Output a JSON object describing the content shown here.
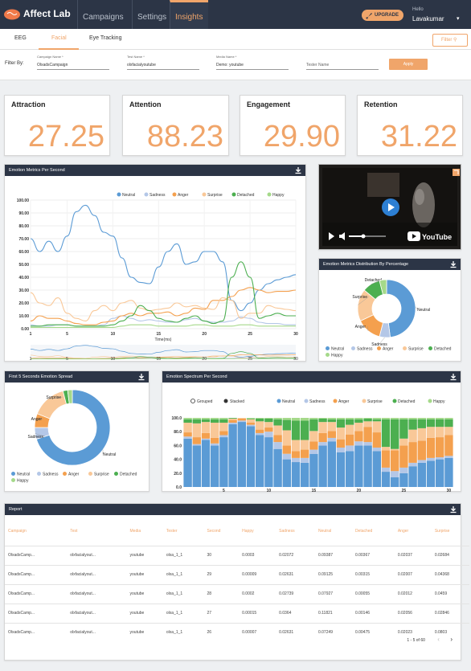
{
  "nav": {
    "brand": "Affect Lab",
    "tabs": [
      "Campaigns",
      "Settings",
      "Insights"
    ],
    "upgrade": "UPGRADE",
    "hello": "Hello",
    "user": "Lavakumar"
  },
  "subtabs": [
    "EEG",
    "Facial",
    "Eye Tracking"
  ],
  "filter_button": "Filter",
  "filterbar": {
    "label": "Filter By:",
    "fields": [
      {
        "label": "Campaign Name *",
        "value": "OlxadsCampaign"
      },
      {
        "label": "Test Name *",
        "value": "olxfacialyoutube"
      },
      {
        "label": "Media Name *",
        "value": "Demo: youtube"
      },
      {
        "label": "",
        "value": "Tester Name"
      }
    ],
    "apply": "Apply"
  },
  "stats": [
    {
      "title": "Attraction",
      "value": "27.25"
    },
    {
      "title": "Attention",
      "value": "88.23"
    },
    {
      "title": "Engagement",
      "value": "29.90"
    },
    {
      "title": "Retention",
      "value": "31.22"
    }
  ],
  "colors": {
    "neutral": "#5b9bd5",
    "sadness": "#b4c7e7",
    "anger": "#f4a04e",
    "surprise": "#f9c898",
    "detached": "#4caf50",
    "happy": "#a5d98a"
  },
  "panels": {
    "metrics": "Emotion Metrics Per Second",
    "distribution": "Emotion Metrics Distribution By Percentage",
    "first5": "First 5 Seconds Emotion Spread",
    "spectrum": "Emotion Spectrum Per Second",
    "report": "Report"
  },
  "legend_labels": [
    "Neutral",
    "Sadness",
    "Anger",
    "Surprise",
    "Detached",
    "Happy"
  ],
  "video": {
    "brand": "YouTube"
  },
  "spectrum_toggle": [
    "Grouped",
    "Stacked"
  ],
  "chart_data": [
    {
      "type": "line",
      "title": "Emotion Metrics Per Second",
      "xlabel": "Time(ms)",
      "ylim": [
        0,
        100
      ],
      "yticks": [
        "100.00",
        "90.00",
        "80.00",
        "70.00",
        "60.00",
        "50.00",
        "40.00",
        "30.00",
        "20.00",
        "10.00",
        "0.00"
      ],
      "xticks": [
        "1",
        "5",
        "10",
        "15",
        "20",
        "25",
        "30"
      ],
      "x": [
        1,
        2,
        3,
        4,
        5,
        6,
        7,
        8,
        9,
        10,
        11,
        12,
        13,
        14,
        15,
        16,
        17,
        18,
        19,
        20,
        21,
        22,
        23,
        24,
        25,
        26,
        27,
        28,
        29,
        30
      ],
      "series": [
        {
          "name": "Neutral",
          "values": [
            70,
            60,
            68,
            60,
            72,
            91,
            96,
            88,
            75,
            72,
            55,
            40,
            36,
            35,
            48,
            60,
            66,
            50,
            52,
            60,
            60,
            52,
            22,
            14,
            20,
            30,
            35,
            38,
            40,
            42
          ]
        },
        {
          "name": "Sadness",
          "values": [
            3,
            2,
            2,
            3,
            3,
            2,
            2,
            2,
            3,
            8,
            10,
            8,
            6,
            7,
            6,
            5,
            5,
            7,
            8,
            6,
            5,
            5,
            6,
            9,
            8,
            5,
            4,
            4,
            3,
            3
          ]
        },
        {
          "name": "Anger",
          "values": [
            6,
            10,
            8,
            8,
            6,
            4,
            3,
            3,
            5,
            6,
            10,
            12,
            10,
            12,
            12,
            13,
            10,
            12,
            16,
            15,
            22,
            22,
            25,
            30,
            32,
            30,
            28,
            29,
            29,
            30
          ]
        },
        {
          "name": "Surprise",
          "values": [
            28,
            20,
            18,
            24,
            12,
            8,
            6,
            14,
            18,
            14,
            20,
            22,
            16,
            14,
            15,
            16,
            20,
            17,
            18,
            16,
            15,
            24,
            22,
            8,
            12,
            12,
            18,
            16,
            15,
            14
          ]
        },
        {
          "name": "Detached",
          "values": [
            2,
            2,
            3,
            3,
            3,
            2,
            2,
            2,
            2,
            3,
            6,
            10,
            18,
            14,
            8,
            6,
            5,
            8,
            10,
            6,
            4,
            6,
            40,
            52,
            40,
            8,
            10,
            12,
            10,
            10
          ]
        },
        {
          "name": "Happy",
          "values": [
            1,
            1,
            1,
            1,
            1,
            1,
            1,
            1,
            1,
            1,
            2,
            3,
            3,
            3,
            2,
            2,
            2,
            2,
            3,
            3,
            2,
            2,
            2,
            3,
            3,
            2,
            2,
            2,
            2,
            2
          ]
        }
      ]
    },
    {
      "type": "pie",
      "title": "Emotion Metrics Distribution By Percentage",
      "labels": [
        "Neutral",
        "Sadness",
        "Anger",
        "Surprise",
        "Detached",
        "Happy"
      ],
      "values": [
        48,
        6,
        14,
        18,
        10,
        4
      ]
    },
    {
      "type": "pie",
      "title": "First 5 Seconds Emotion Spread",
      "labels": [
        "Neutral",
        "Sadness",
        "Anger",
        "Surprise",
        "Detached",
        "Happy"
      ],
      "values": [
        70,
        5,
        6,
        15,
        2,
        2
      ]
    },
    {
      "type": "bar",
      "title": "Emotion Spectrum Per Second",
      "stacked": true,
      "ylim": [
        0,
        100
      ],
      "yticks": [
        "100.0",
        "80.0",
        "60.0",
        "40.0",
        "20.0",
        "0.0"
      ],
      "xticks": [
        "5",
        "10",
        "15",
        "20",
        "25",
        "30"
      ],
      "categories": [
        "1",
        "2",
        "3",
        "4",
        "5",
        "6",
        "7",
        "8",
        "9",
        "10",
        "11",
        "12",
        "13",
        "14",
        "15",
        "16",
        "17",
        "18",
        "19",
        "20",
        "21",
        "22",
        "23",
        "24",
        "25",
        "26",
        "27",
        "28",
        "29",
        "30"
      ],
      "series": [
        {
          "name": "Neutral",
          "values": [
            70,
            60,
            68,
            60,
            72,
            91,
            96,
            88,
            75,
            72,
            55,
            40,
            36,
            35,
            48,
            60,
            66,
            50,
            52,
            60,
            60,
            52,
            22,
            14,
            20,
            30,
            35,
            38,
            40,
            42
          ]
        },
        {
          "name": "Sadness",
          "values": [
            3,
            2,
            2,
            3,
            3,
            2,
            2,
            2,
            3,
            8,
            10,
            8,
            6,
            7,
            6,
            5,
            5,
            7,
            8,
            6,
            5,
            5,
            6,
            9,
            8,
            5,
            4,
            4,
            3,
            3
          ]
        },
        {
          "name": "Anger",
          "values": [
            6,
            10,
            8,
            8,
            6,
            4,
            3,
            3,
            5,
            6,
            10,
            12,
            10,
            12,
            12,
            13,
            10,
            12,
            16,
            15,
            22,
            22,
            25,
            30,
            32,
            30,
            28,
            29,
            29,
            30
          ]
        },
        {
          "name": "Surprise",
          "values": [
            14,
            20,
            16,
            22,
            12,
            2,
            1,
            5,
            12,
            8,
            14,
            22,
            16,
            14,
            15,
            16,
            13,
            17,
            14,
            12,
            8,
            16,
            5,
            2,
            10,
            18,
            18,
            16,
            15,
            12
          ]
        },
        {
          "name": "Detached",
          "values": [
            5,
            6,
            4,
            5,
            5,
            1,
            0,
            1,
            4,
            5,
            9,
            15,
            28,
            28,
            17,
            5,
            4,
            12,
            8,
            5,
            4,
            3,
            40,
            43,
            28,
            15,
            13,
            11,
            11,
            11
          ]
        },
        {
          "name": "Happy",
          "values": [
            2,
            2,
            2,
            2,
            2,
            0,
            0,
            1,
            1,
            1,
            2,
            3,
            4,
            4,
            2,
            1,
            2,
            2,
            2,
            2,
            1,
            2,
            2,
            2,
            2,
            2,
            2,
            2,
            2,
            2
          ]
        }
      ]
    }
  ],
  "report": {
    "columns": [
      "Campaign",
      "Test",
      "Media",
      "Tester",
      "Second",
      "Happy",
      "Sadness",
      "Neutral",
      "Detached",
      "Anger",
      "Surprise"
    ],
    "rows": [
      [
        "OlxadsCamp...",
        "olxfacialyout...",
        "youtube",
        "olxa_1_1",
        "30",
        "0.0003",
        "0.02072",
        "0.09387",
        "0.00367",
        "0.02037",
        "0.02684"
      ],
      [
        "OlxadsCamp...",
        "olxfacialyout...",
        "youtube",
        "olxa_1_1",
        "29",
        "0.00009",
        "0.02631",
        "0.09125",
        "0.00315",
        "0.02007",
        "0.04368"
      ],
      [
        "OlxadsCamp...",
        "olxfacialyout...",
        "youtube",
        "olxa_1_1",
        "28",
        "0.0002",
        "0.02739",
        "0.07927",
        "0.00055",
        "0.02012",
        "0.0459"
      ],
      [
        "OlxadsCamp...",
        "olxfacialyout...",
        "youtube",
        "olxa_1_1",
        "27",
        "0.00015",
        "0.0364",
        "0.11821",
        "0.00146",
        "0.02056",
        "0.02846"
      ],
      [
        "OlxadsCamp...",
        "olxfacialyout...",
        "youtube",
        "olxa_1_1",
        "26",
        "0.00007",
        "0.02631",
        "0.07249",
        "0.00475",
        "0.02023",
        "0.0803"
      ]
    ],
    "pagination": "1 - 5 of 60"
  }
}
